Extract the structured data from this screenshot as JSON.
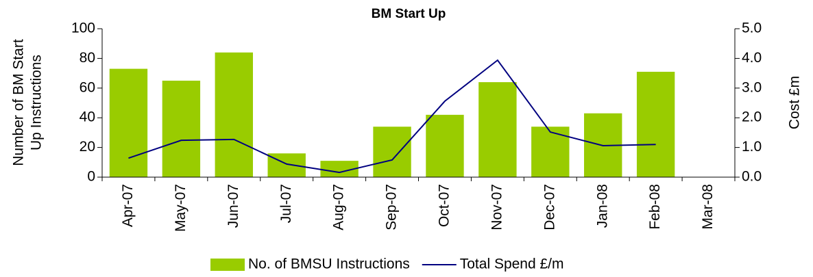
{
  "chart_data": {
    "type": "bar",
    "title": "BM Start Up",
    "categories": [
      "Apr-07",
      "May-07",
      "Jun-07",
      "Jul-07",
      "Aug-07",
      "Sep-07",
      "Oct-07",
      "Nov-07",
      "Dec-07",
      "Jan-08",
      "Feb-08",
      "Mar-08"
    ],
    "series": [
      {
        "name": "No. of BMSU Instructions",
        "type": "bar",
        "color": "#99cc00",
        "values": [
          73,
          65,
          84,
          16,
          11,
          34,
          42,
          64,
          34,
          43,
          71,
          null
        ]
      },
      {
        "name": "Total Spend £/m",
        "type": "line",
        "axis": "y2",
        "color": "#000080",
        "values": [
          0.64,
          1.24,
          1.27,
          0.44,
          0.16,
          0.58,
          2.56,
          3.94,
          1.52,
          1.06,
          1.1,
          null
        ]
      }
    ],
    "ylabel": [
      "Number of BM Start",
      "Up Instructions"
    ],
    "y2label": "Cost £m",
    "ylim": [
      0,
      100
    ],
    "yticks": [
      0,
      20,
      40,
      60,
      80,
      100
    ],
    "y2lim": [
      0,
      5
    ],
    "y2ticks": [
      {
        "value": 0,
        "label": "0.0"
      },
      {
        "value": 1,
        "label": "1.0"
      },
      {
        "value": 2,
        "label": "2.0"
      },
      {
        "value": 3,
        "label": "3.0"
      },
      {
        "value": 4,
        "label": "4.0"
      },
      {
        "value": 5,
        "label": "5.0"
      }
    ],
    "legend": "bottom"
  }
}
